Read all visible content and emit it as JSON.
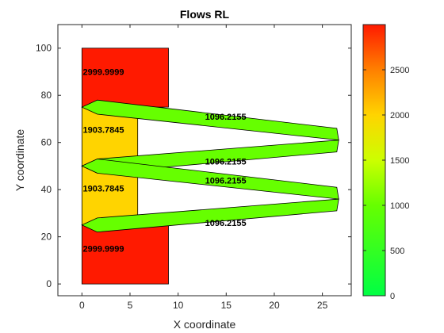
{
  "chart_data": {
    "type": "other",
    "title": "Flows RL",
    "xlabel": "X coordinate",
    "ylabel": "Y coordinate",
    "xlim": [
      -2.5,
      28
    ],
    "ylim": [
      -5,
      110
    ],
    "xticks": [
      0,
      5,
      10,
      15,
      20,
      25
    ],
    "yticks": [
      0,
      20,
      40,
      60,
      80,
      100
    ],
    "rectangles": [
      {
        "x0": 0,
        "x1": 9,
        "y0": 75,
        "y1": 100,
        "value": 2999.9999,
        "color": "#ff1a00"
      },
      {
        "x0": 0,
        "x1": 5.8,
        "y0": 50,
        "y1": 75,
        "value": 1903.7845,
        "color": "#ffd400"
      },
      {
        "x0": 0,
        "x1": 5.8,
        "y0": 25,
        "y1": 50,
        "value": 1903.7845,
        "color": "#ffd400"
      },
      {
        "x0": 0,
        "x1": 9,
        "y0": 0,
        "y1": 25,
        "value": 2999.9999,
        "color": "#ff1a00"
      }
    ],
    "rectangle_labels": [
      {
        "text": "2999.9999",
        "x": 0.1,
        "y": 90
      },
      {
        "text": "1903.7845",
        "x": 0.1,
        "y": 65.5
      },
      {
        "text": "1903.7845",
        "x": 0.1,
        "y": 40.5
      },
      {
        "text": "2999.9999",
        "x": 0.1,
        "y": 15
      }
    ],
    "flows": [
      {
        "value": 1096.2155,
        "color": "#66ff00",
        "polygon": [
          [
            0,
            75
          ],
          [
            1.6,
            78
          ],
          [
            26.5,
            66
          ],
          [
            26.7,
            61
          ],
          [
            1.6,
            72
          ]
        ],
        "label": {
          "text": "1096.2155",
          "x": 12.8,
          "y": 71
        }
      },
      {
        "value": 1096.2155,
        "color": "#66ff00",
        "polygon": [
          [
            0,
            50
          ],
          [
            1.6,
            53
          ],
          [
            26.7,
            61
          ],
          [
            26.5,
            56
          ],
          [
            1.6,
            47
          ]
        ],
        "label": {
          "text": "1096.2155",
          "x": 12.8,
          "y": 52
        }
      },
      {
        "value": 1096.2155,
        "color": "#66ff00",
        "polygon": [
          [
            0,
            50
          ],
          [
            1.6,
            53
          ],
          [
            26.5,
            41
          ],
          [
            26.7,
            36
          ],
          [
            1.6,
            47
          ]
        ],
        "label": {
          "text": "1096.2155",
          "x": 12.8,
          "y": 44
        }
      },
      {
        "value": 1096.2155,
        "color": "#66ff00",
        "polygon": [
          [
            0,
            25
          ],
          [
            1.6,
            28
          ],
          [
            26.7,
            36
          ],
          [
            26.5,
            31
          ],
          [
            1.6,
            22
          ]
        ],
        "label": {
          "text": "1096.2155",
          "x": 12.8,
          "y": 26
        }
      }
    ],
    "colorbar": {
      "range": [
        0,
        3000
      ],
      "ticks": [
        0,
        500,
        1000,
        1500,
        2000,
        2500
      ],
      "colors": [
        "#00ff44",
        "#33ff22",
        "#66ff00",
        "#ccff00",
        "#ffd400",
        "#ff8000",
        "#ff1a00"
      ]
    }
  }
}
